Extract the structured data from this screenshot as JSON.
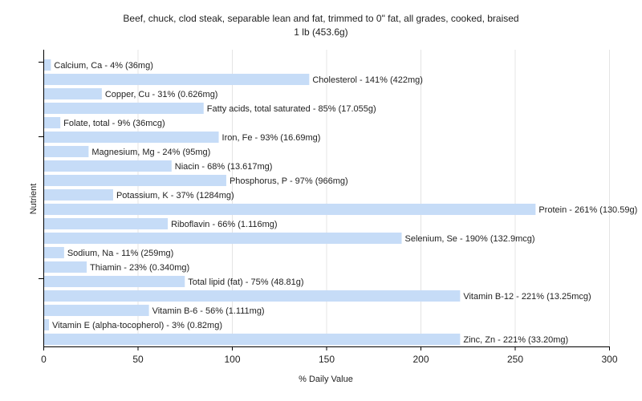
{
  "chart_data": {
    "type": "bar",
    "orientation": "horizontal",
    "title": "Beef, chuck, clod steak, separable lean and fat, trimmed to 0\" fat, all grades, cooked, braised",
    "subtitle": "1 lb (453.6g)",
    "xlabel": "% Daily Value",
    "ylabel": "Nutrient",
    "xlim": [
      0,
      300
    ],
    "xticks": [
      0,
      50,
      100,
      150,
      200,
      250,
      300
    ],
    "grid": true,
    "bar_color": "#c6dcf7",
    "categories": [
      "Calcium, Ca",
      "Cholesterol",
      "Copper, Cu",
      "Fatty acids, total saturated",
      "Folate, total",
      "Iron, Fe",
      "Magnesium, Mg",
      "Niacin",
      "Phosphorus, P",
      "Potassium, K",
      "Protein",
      "Riboflavin",
      "Selenium, Se",
      "Sodium, Na",
      "Thiamin",
      "Total lipid (fat)",
      "Vitamin B-12",
      "Vitamin B-6",
      "Vitamin E (alpha-tocopherol)",
      "Zinc, Zn"
    ],
    "values": [
      4,
      141,
      31,
      85,
      9,
      93,
      24,
      68,
      97,
      37,
      261,
      66,
      190,
      11,
      23,
      75,
      221,
      56,
      3,
      221
    ],
    "labels": [
      "Calcium, Ca - 4% (36mg)",
      "Cholesterol - 141% (422mg)",
      "Copper, Cu - 31% (0.626mg)",
      "Fatty acids, total saturated - 85% (17.055g)",
      "Folate, total - 9% (36mcg)",
      "Iron, Fe - 93% (16.69mg)",
      "Magnesium, Mg - 24% (95mg)",
      "Niacin - 68% (13.617mg)",
      "Phosphorus, P - 97% (966mg)",
      "Potassium, K - 37% (1284mg)",
      "Protein - 261% (130.59g)",
      "Riboflavin - 66% (1.116mg)",
      "Selenium, Se - 190% (132.9mcg)",
      "Sodium, Na - 11% (259mg)",
      "Thiamin - 23% (0.340mg)",
      "Total lipid (fat) - 75% (48.81g)",
      "Vitamin B-12 - 221% (13.25mcg)",
      "Vitamin B-6 - 56% (1.111mg)",
      "Vitamin E (alpha-tocopherol) - 3% (0.82mg)",
      "Zinc, Zn - 221% (33.20mg)"
    ]
  }
}
